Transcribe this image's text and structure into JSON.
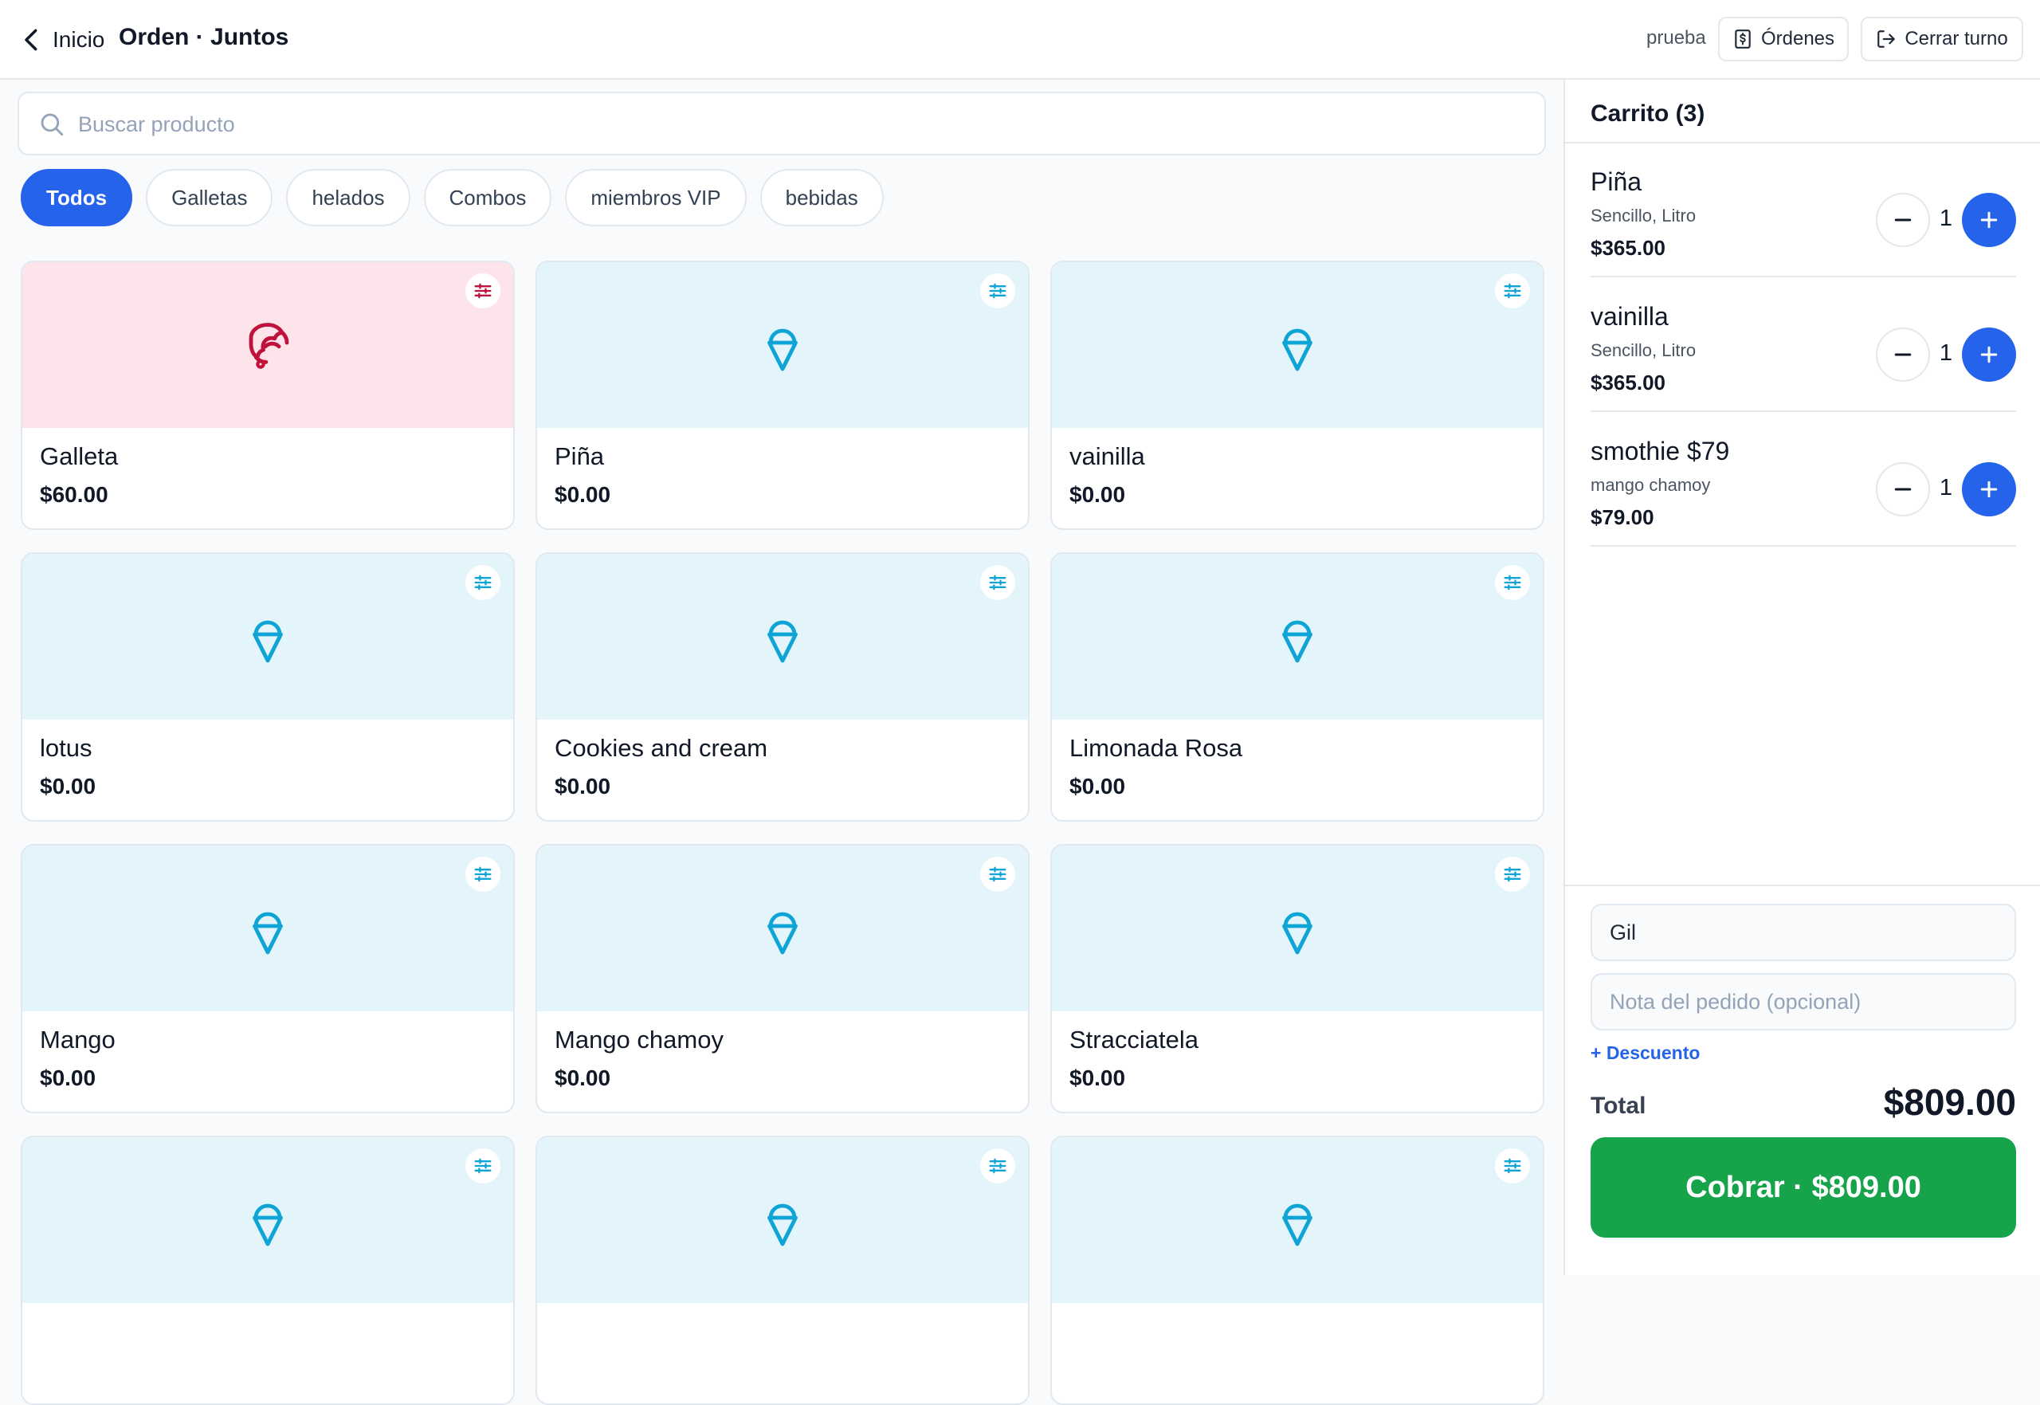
{
  "header": {
    "back_label": "Inicio",
    "title": "Orden · Juntos",
    "user": "prueba",
    "orders_label": "Órdenes",
    "close_shift_label": "Cerrar turno"
  },
  "search": {
    "placeholder": "Buscar producto",
    "value": ""
  },
  "categories": [
    {
      "label": "Todos",
      "active": true
    },
    {
      "label": "Galletas",
      "active": false
    },
    {
      "label": "helados",
      "active": false
    },
    {
      "label": "Combos",
      "active": false
    },
    {
      "label": "miembros VIP",
      "active": false
    },
    {
      "label": "bebidas",
      "active": false
    }
  ],
  "products": [
    {
      "name": "Galleta",
      "price": "$60.00",
      "icon": "croissant-icon"
    },
    {
      "name": "Piña",
      "price": "$0.00",
      "icon": "ice-cream-icon"
    },
    {
      "name": "vainilla",
      "price": "$0.00",
      "icon": "ice-cream-icon"
    },
    {
      "name": "lotus",
      "price": "$0.00",
      "icon": "ice-cream-icon"
    },
    {
      "name": "Cookies and cream",
      "price": "$0.00",
      "icon": "ice-cream-icon"
    },
    {
      "name": "Limonada Rosa",
      "price": "$0.00",
      "icon": "ice-cream-icon"
    },
    {
      "name": "Mango",
      "price": "$0.00",
      "icon": "ice-cream-icon"
    },
    {
      "name": "Mango chamoy",
      "price": "$0.00",
      "icon": "ice-cream-icon"
    },
    {
      "name": "Stracciatela",
      "price": "$0.00",
      "icon": "ice-cream-icon"
    },
    {
      "name": "",
      "price": "",
      "icon": "ice-cream-icon"
    },
    {
      "name": "",
      "price": "",
      "icon": "ice-cream-icon"
    },
    {
      "name": "",
      "price": "",
      "icon": "ice-cream-icon"
    }
  ],
  "cart": {
    "title": "Carrito (3)",
    "items": [
      {
        "name": "Piña",
        "variant": "Sencillo, Litro",
        "price": "$365.00",
        "qty": "1"
      },
      {
        "name": "vainilla",
        "variant": "Sencillo, Litro",
        "price": "$365.00",
        "qty": "1"
      },
      {
        "name": "smothie $79",
        "variant": "mango chamoy",
        "price": "$79.00",
        "qty": "1"
      }
    ],
    "customer_name": "Gil",
    "note_placeholder": "Nota del pedido (opcional)",
    "discount_label": "+ Descuento",
    "total_label": "Total",
    "total_value": "$809.00",
    "pay_label": "Cobrar · $809.00"
  },
  "colors": {
    "primary": "#2563eb",
    "pay": "#16a34a",
    "ice_cream_icon": "#0ea5d6",
    "croissant_icon": "#be123c",
    "card_blue_bg": "#e3f4fb",
    "card_pink_bg": "#fce4ea"
  }
}
